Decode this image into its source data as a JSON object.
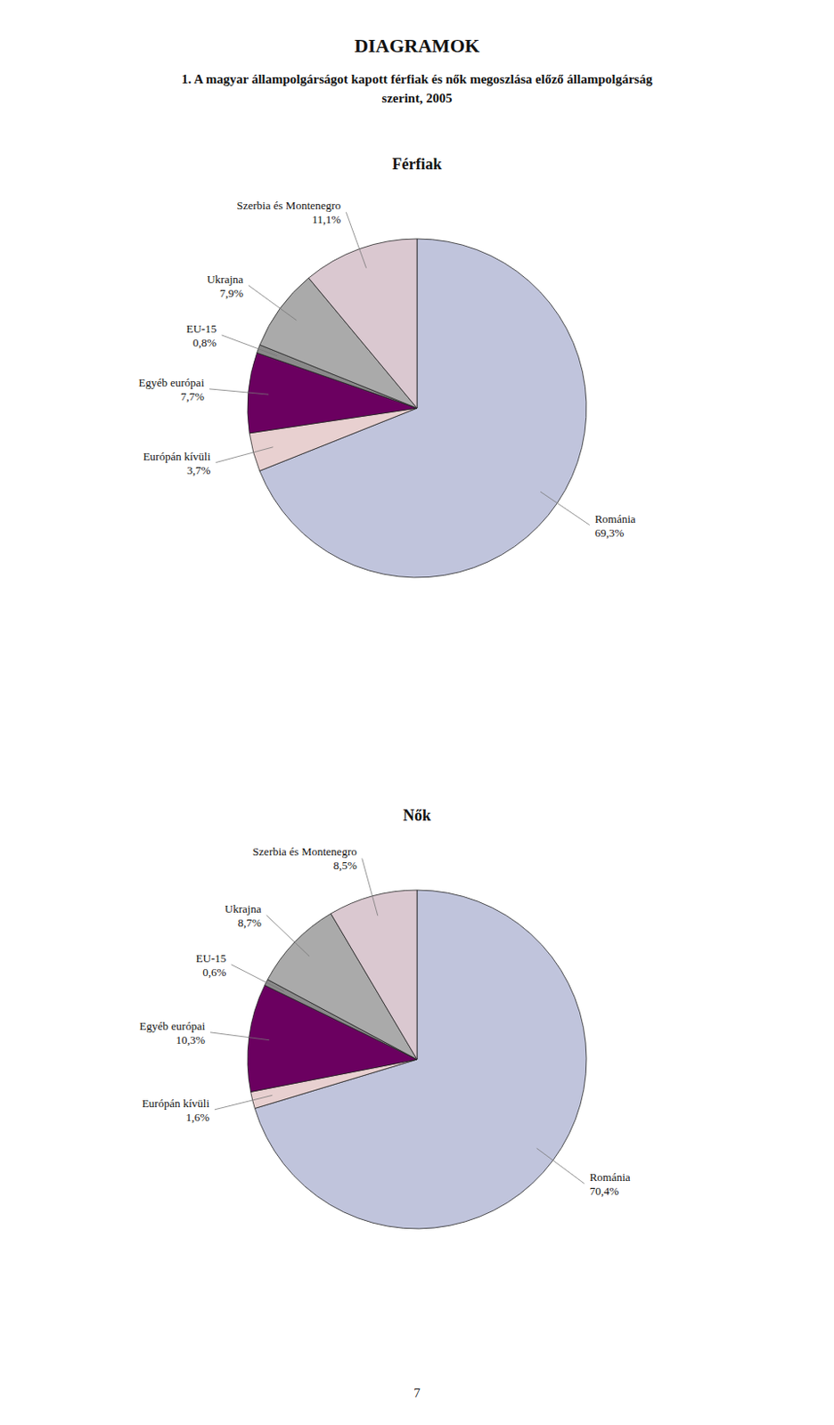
{
  "title": "DIAGRAMOK",
  "subtitle": [
    "1. A magyar állampolgárságot kapott férfiak és nők megoszlása előző állampolgárság",
    "szerint, 2005"
  ],
  "page_number": "7",
  "chart_data": [
    {
      "type": "pie",
      "title": "Férfiak",
      "categories": [
        "Románia",
        "Európán kívüli",
        "Egyéb európai",
        "EU-15",
        "Ukrajna",
        "Szerbia és Montenegro"
      ],
      "values": [
        69.3,
        3.7,
        7.7,
        0.8,
        7.9,
        11.1
      ],
      "value_labels": [
        "69,3%",
        "3,7%",
        "7,7%",
        "0,8%",
        "7,9%",
        "11,1%"
      ],
      "colors": [
        "#c0c4dc",
        "#e8d0d0",
        "#6b0060",
        "#8a8a8a",
        "#aaaaaa",
        "#dac8d0"
      ],
      "data_labels": true
    },
    {
      "type": "pie",
      "title": "Nők",
      "categories": [
        "Románia",
        "Európán kívüli",
        "Egyéb európai",
        "EU-15",
        "Ukrajna",
        "Szerbia és Montenegro"
      ],
      "values": [
        70.4,
        1.6,
        10.3,
        0.6,
        8.7,
        8.5
      ],
      "value_labels": [
        "70,4%",
        "1,6%",
        "10,3%",
        "0,6%",
        "8,7%",
        "8,5%"
      ],
      "colors": [
        "#c0c4dc",
        "#e8d0d0",
        "#6b0060",
        "#8a8a8a",
        "#aaaaaa",
        "#dac8d0"
      ],
      "data_labels": true
    }
  ]
}
